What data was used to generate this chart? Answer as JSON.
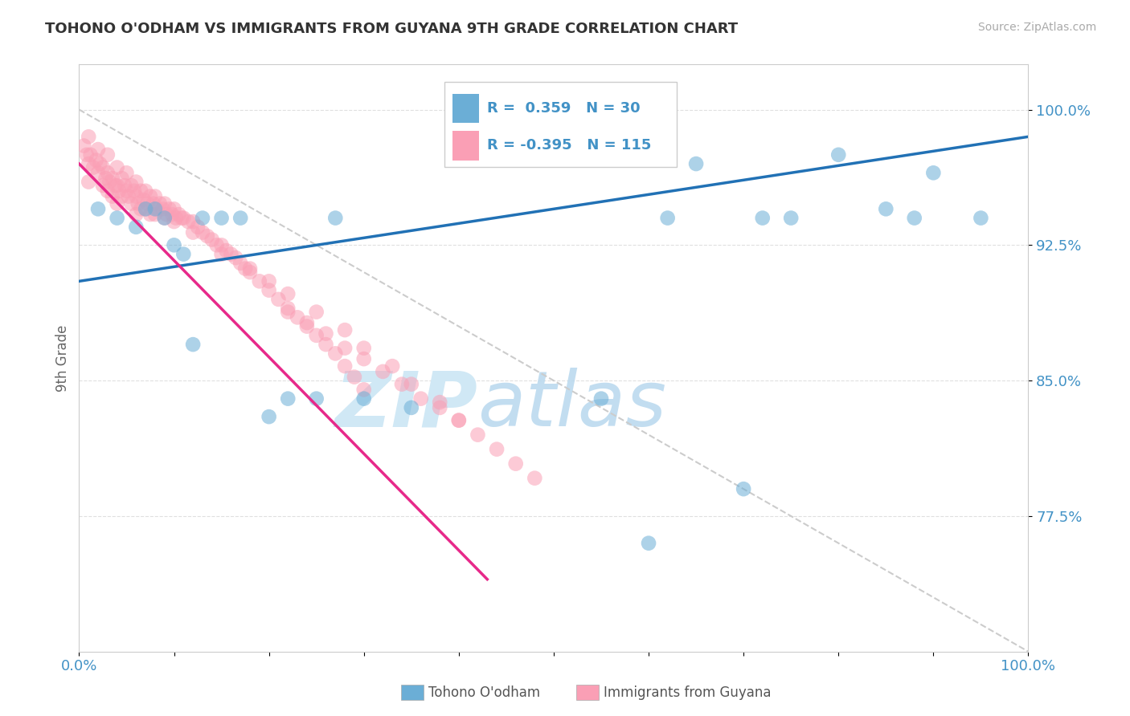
{
  "title": "TOHONO O'ODHAM VS IMMIGRANTS FROM GUYANA 9TH GRADE CORRELATION CHART",
  "source": "Source: ZipAtlas.com",
  "ylabel": "9th Grade",
  "xlim": [
    0.0,
    1.0
  ],
  "ylim": [
    0.7,
    1.025
  ],
  "yticks": [
    0.775,
    0.85,
    0.925,
    1.0
  ],
  "ytick_labels": [
    "77.5%",
    "85.0%",
    "92.5%",
    "100.0%"
  ],
  "xticks": [
    0.0,
    0.1,
    0.2,
    0.3,
    0.4,
    0.5,
    0.6,
    0.7,
    0.8,
    0.9,
    1.0
  ],
  "xtick_labels": [
    "0.0%",
    "",
    "",
    "",
    "",
    "",
    "",
    "",
    "",
    "",
    "100.0%"
  ],
  "blue_color": "#6baed6",
  "pink_color": "#fa9fb5",
  "blue_edge_color": "#4292c6",
  "pink_edge_color": "#f768a1",
  "blue_label": "Tohono O'odham",
  "pink_label": "Immigrants from Guyana",
  "R_blue": 0.359,
  "N_blue": 30,
  "R_pink": -0.395,
  "N_pink": 115,
  "text_color": "#4292c6",
  "watermark_color": "#d0e8f5",
  "grid_color": "#cccccc",
  "blue_trend": [
    0.0,
    1.0,
    0.905,
    0.985
  ],
  "pink_trend": [
    0.0,
    0.43,
    0.97,
    0.74
  ],
  "diag_line": [
    0.0,
    1.0,
    1.0,
    0.7
  ],
  "blue_scatter_x": [
    0.02,
    0.04,
    0.06,
    0.07,
    0.08,
    0.09,
    0.1,
    0.11,
    0.12,
    0.13,
    0.15,
    0.17,
    0.2,
    0.22,
    0.25,
    0.27,
    0.3,
    0.35,
    0.55,
    0.6,
    0.62,
    0.65,
    0.7,
    0.72,
    0.75,
    0.8,
    0.85,
    0.88,
    0.9,
    0.95
  ],
  "blue_scatter_y": [
    0.945,
    0.94,
    0.935,
    0.945,
    0.945,
    0.94,
    0.925,
    0.92,
    0.87,
    0.94,
    0.94,
    0.94,
    0.83,
    0.84,
    0.84,
    0.94,
    0.84,
    0.835,
    0.84,
    0.76,
    0.94,
    0.97,
    0.79,
    0.94,
    0.94,
    0.975,
    0.945,
    0.94,
    0.965,
    0.94
  ],
  "pink_scatter_x": [
    0.005,
    0.008,
    0.01,
    0.01,
    0.01,
    0.012,
    0.015,
    0.018,
    0.02,
    0.02,
    0.022,
    0.025,
    0.025,
    0.028,
    0.03,
    0.03,
    0.03,
    0.032,
    0.035,
    0.035,
    0.038,
    0.04,
    0.04,
    0.04,
    0.042,
    0.045,
    0.045,
    0.048,
    0.05,
    0.05,
    0.052,
    0.055,
    0.055,
    0.058,
    0.06,
    0.06,
    0.06,
    0.062,
    0.065,
    0.065,
    0.068,
    0.07,
    0.07,
    0.072,
    0.075,
    0.075,
    0.078,
    0.08,
    0.08,
    0.082,
    0.085,
    0.088,
    0.09,
    0.09,
    0.092,
    0.095,
    0.098,
    0.1,
    0.1,
    0.102,
    0.105,
    0.108,
    0.11,
    0.115,
    0.12,
    0.12,
    0.125,
    0.13,
    0.135,
    0.14,
    0.145,
    0.15,
    0.155,
    0.16,
    0.165,
    0.17,
    0.175,
    0.18,
    0.19,
    0.2,
    0.21,
    0.22,
    0.23,
    0.24,
    0.25,
    0.26,
    0.27,
    0.28,
    0.29,
    0.3,
    0.22,
    0.24,
    0.26,
    0.28,
    0.3,
    0.32,
    0.34,
    0.36,
    0.38,
    0.4,
    0.15,
    0.18,
    0.2,
    0.22,
    0.25,
    0.28,
    0.3,
    0.33,
    0.35,
    0.38,
    0.4,
    0.42,
    0.44,
    0.46,
    0.48
  ],
  "pink_scatter_y": [
    0.98,
    0.975,
    0.985,
    0.97,
    0.96,
    0.975,
    0.968,
    0.972,
    0.978,
    0.965,
    0.97,
    0.968,
    0.958,
    0.962,
    0.975,
    0.965,
    0.955,
    0.96,
    0.962,
    0.952,
    0.958,
    0.968,
    0.958,
    0.948,
    0.955,
    0.962,
    0.952,
    0.958,
    0.965,
    0.955,
    0.952,
    0.958,
    0.948,
    0.955,
    0.96,
    0.952,
    0.942,
    0.948,
    0.955,
    0.945,
    0.95,
    0.955,
    0.945,
    0.948,
    0.952,
    0.942,
    0.948,
    0.952,
    0.942,
    0.945,
    0.948,
    0.945,
    0.948,
    0.94,
    0.942,
    0.945,
    0.942,
    0.945,
    0.938,
    0.94,
    0.942,
    0.94,
    0.94,
    0.938,
    0.938,
    0.932,
    0.935,
    0.932,
    0.93,
    0.928,
    0.925,
    0.925,
    0.922,
    0.92,
    0.918,
    0.915,
    0.912,
    0.91,
    0.905,
    0.9,
    0.895,
    0.89,
    0.885,
    0.88,
    0.875,
    0.87,
    0.865,
    0.858,
    0.852,
    0.845,
    0.888,
    0.882,
    0.876,
    0.868,
    0.862,
    0.855,
    0.848,
    0.84,
    0.835,
    0.828,
    0.92,
    0.912,
    0.905,
    0.898,
    0.888,
    0.878,
    0.868,
    0.858,
    0.848,
    0.838,
    0.828,
    0.82,
    0.812,
    0.804,
    0.796
  ]
}
